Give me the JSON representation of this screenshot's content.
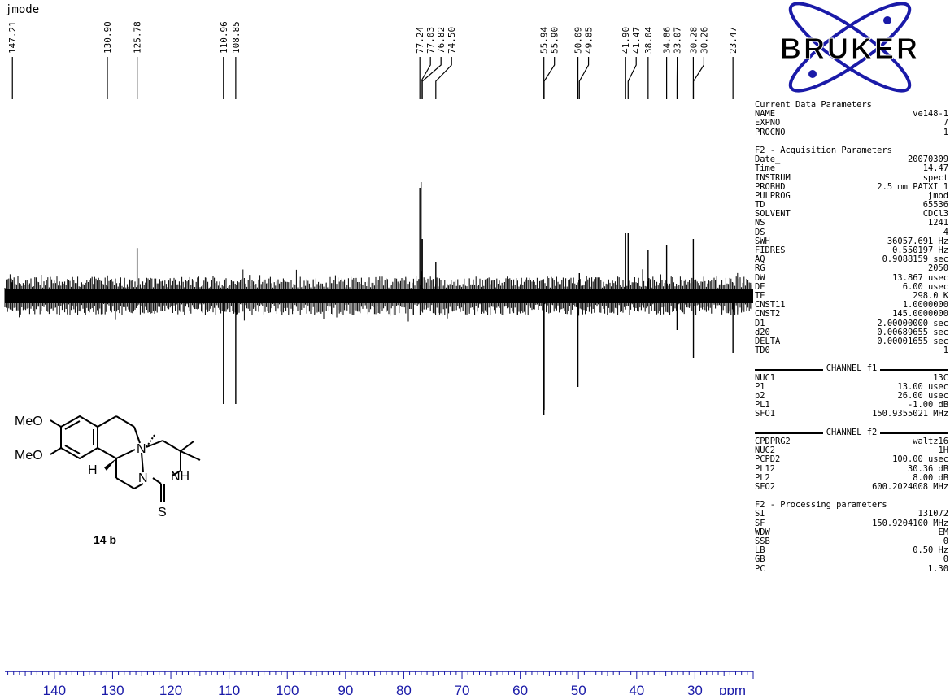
{
  "spectrum_mode": "jmode",
  "chart_data": {
    "type": "line",
    "xunit_label": "ppm",
    "x_ticks": [
      140,
      130,
      120,
      110,
      100,
      90,
      80,
      70,
      60,
      50,
      40,
      30
    ],
    "xlim": [
      148.5,
      20
    ],
    "peak_labels": [
      "147.21",
      "130.90",
      "125.78",
      "110.96",
      "108.85",
      "77.24",
      "77.03",
      "76.82",
      "74.50",
      "55.94",
      "55.90",
      "50.09",
      "49.85",
      "41.90",
      "41.47",
      "38.04",
      "34.86",
      "33.07",
      "30.28",
      "30.26",
      "23.47"
    ],
    "peaks": [
      {
        "ppm": 147.21,
        "intensity": 0.12
      },
      {
        "ppm": 130.9,
        "intensity": 0.18
      },
      {
        "ppm": 125.78,
        "intensity": 0.42
      },
      {
        "ppm": 110.96,
        "intensity": -0.95
      },
      {
        "ppm": 108.85,
        "intensity": -0.95
      },
      {
        "ppm": 77.24,
        "intensity": 0.95
      },
      {
        "ppm": 77.03,
        "intensity": 1.0
      },
      {
        "ppm": 76.82,
        "intensity": 0.5
      },
      {
        "ppm": 74.5,
        "intensity": 0.3
      },
      {
        "ppm": 55.94,
        "intensity": -1.05
      },
      {
        "ppm": 55.9,
        "intensity": -1.0
      },
      {
        "ppm": 50.09,
        "intensity": -0.8
      },
      {
        "ppm": 49.85,
        "intensity": 0.2
      },
      {
        "ppm": 41.9,
        "intensity": 0.55
      },
      {
        "ppm": 41.47,
        "intensity": 0.55
      },
      {
        "ppm": 38.04,
        "intensity": 0.4
      },
      {
        "ppm": 34.86,
        "intensity": 0.45
      },
      {
        "ppm": 33.07,
        "intensity": -0.3
      },
      {
        "ppm": 30.28,
        "intensity": 0.5
      },
      {
        "ppm": 30.26,
        "intensity": -0.55
      },
      {
        "ppm": 23.47,
        "intensity": -0.5
      }
    ]
  },
  "logo": {
    "text": "BRUKER",
    "color": "#1a1aa8"
  },
  "params": {
    "current": {
      "title": "Current Data Parameters",
      "rows": [
        [
          "NAME",
          "ve148-1"
        ],
        [
          "EXPNO",
          "7"
        ],
        [
          "PROCNO",
          "1"
        ]
      ]
    },
    "acq": {
      "title": "F2 - Acquisition Parameters",
      "rows": [
        [
          "Date_",
          "20070309"
        ],
        [
          "Time",
          "14.47"
        ],
        [
          "INSTRUM",
          "spect"
        ],
        [
          "PROBHD",
          "2.5 mm PATXI 1"
        ],
        [
          "PULPROG",
          "jmod"
        ],
        [
          "TD",
          "65536"
        ],
        [
          "SOLVENT",
          "CDCl3"
        ],
        [
          "NS",
          "1241"
        ],
        [
          "DS",
          "4"
        ],
        [
          "SWH",
          "36057.691 Hz"
        ],
        [
          "FIDRES",
          "0.550197 Hz"
        ],
        [
          "AQ",
          "0.9088159 sec"
        ],
        [
          "RG",
          "2050"
        ],
        [
          "DW",
          "13.867 usec"
        ],
        [
          "DE",
          "6.00 usec"
        ],
        [
          "TE",
          "298.0 K"
        ],
        [
          "CNST11",
          "1.0000000"
        ],
        [
          "CNST2",
          "145.0000000"
        ],
        [
          "D1",
          "2.00000000 sec"
        ],
        [
          "d20",
          "0.00689655 sec"
        ],
        [
          "DELTA",
          "0.00001655 sec"
        ],
        [
          "TD0",
          "1"
        ]
      ]
    },
    "ch1": {
      "title": "CHANNEL f1",
      "rows": [
        [
          "NUC1",
          "13C"
        ],
        [
          "P1",
          "13.00 usec"
        ],
        [
          "p2",
          "26.00 usec"
        ],
        [
          "PL1",
          "-1.00 dB"
        ],
        [
          "SFO1",
          "150.9355021 MHz"
        ]
      ]
    },
    "ch2": {
      "title": "CHANNEL f2",
      "rows": [
        [
          "CPDPRG2",
          "waltz16"
        ],
        [
          "NUC2",
          "1H"
        ],
        [
          "PCPD2",
          "100.00 usec"
        ],
        [
          "PL12",
          "30.36 dB"
        ],
        [
          "PL2",
          "8.00 dB"
        ],
        [
          "SFO2",
          "600.2024008 MHz"
        ]
      ]
    },
    "proc": {
      "title": "F2 - Processing parameters",
      "rows": [
        [
          "SI",
          "131072"
        ],
        [
          "SF",
          "150.9204100 MHz"
        ],
        [
          "WDW",
          "EM"
        ],
        [
          "SSB",
          "0"
        ],
        [
          "LB",
          "0.50 Hz"
        ],
        [
          "GB",
          "0"
        ],
        [
          "PC",
          "1.30"
        ]
      ]
    }
  },
  "molecule": {
    "substituent_1": "MeO",
    "substituent_2": "MeO",
    "atom_N1": "N",
    "atom_N2": "N",
    "atom_NH": "NH",
    "atom_H": "H",
    "atom_S": "S"
  },
  "compound_label": "14 b"
}
